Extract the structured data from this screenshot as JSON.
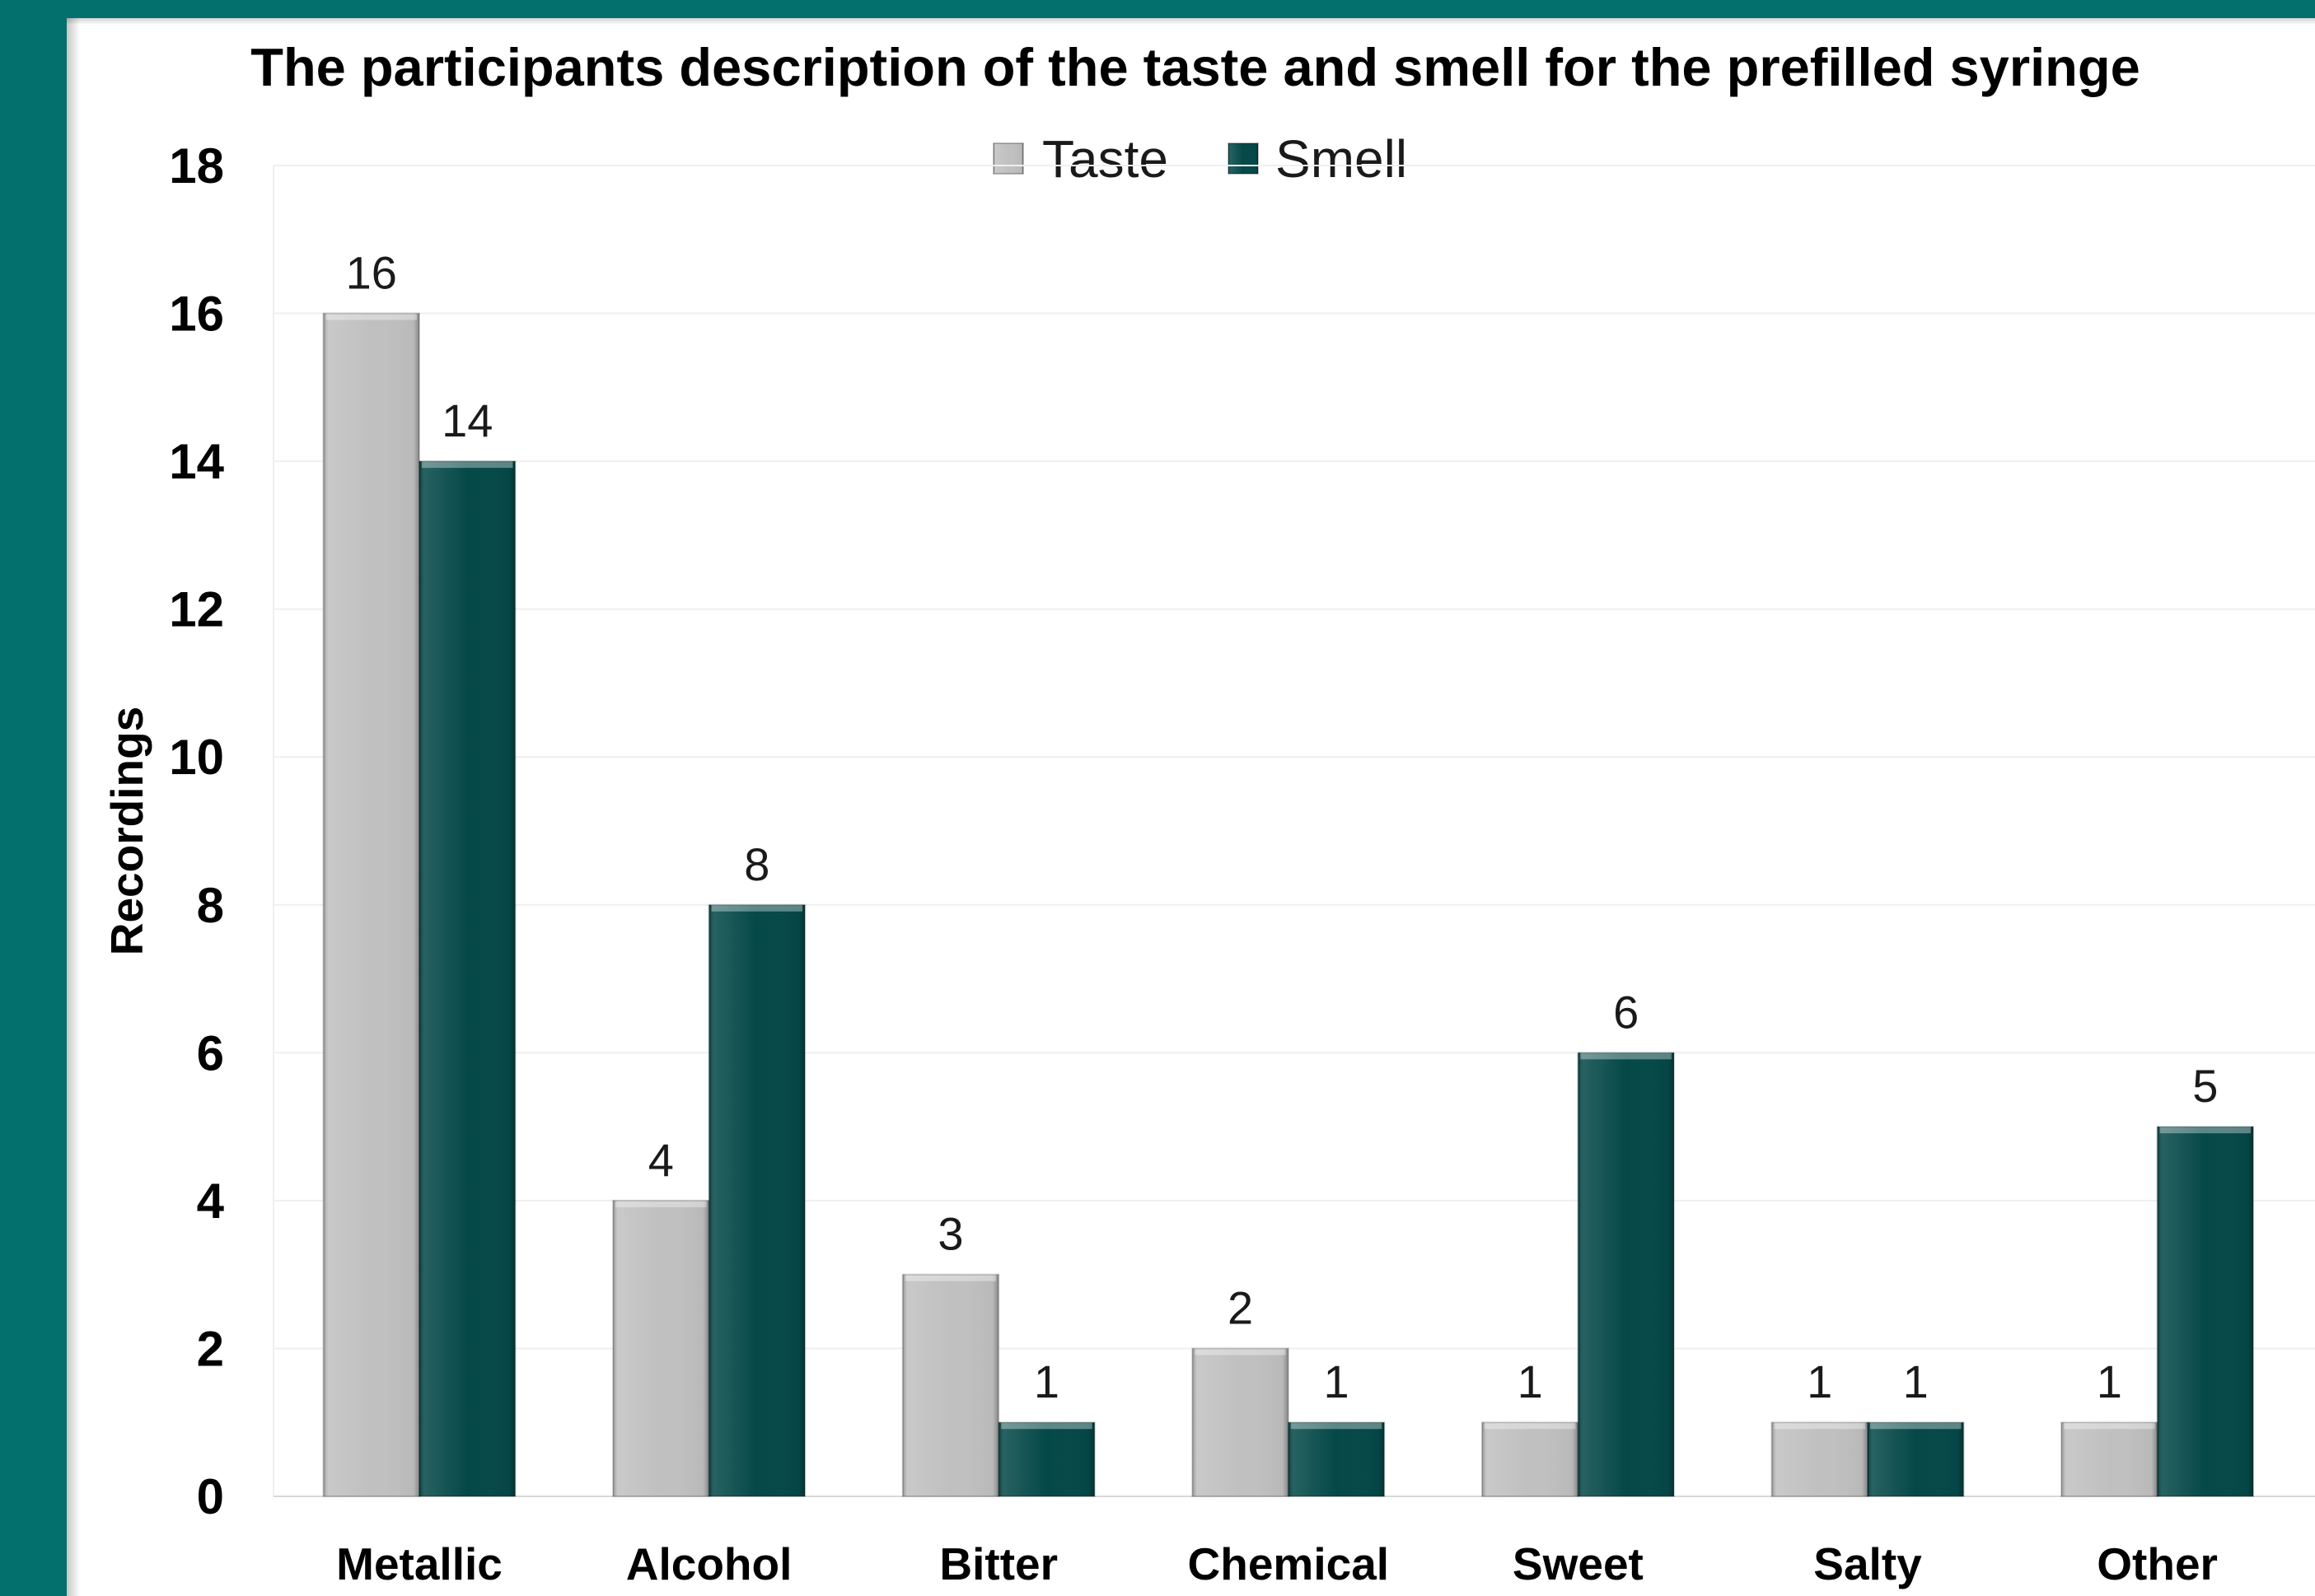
{
  "colors": {
    "frame": "#03706d",
    "background": "#ffffff",
    "gridline": "#efefef",
    "axis": "#d9d9d9"
  },
  "chart_data": {
    "type": "bar",
    "title": "The participants description of the taste and smell for the prefilled syringe",
    "ylabel": "Recordings",
    "categories": [
      "Metallic",
      "Alcohol",
      "Bitter",
      "Chemical",
      "Sweet",
      "Salty",
      "Other"
    ],
    "series": [
      {
        "name": "Taste",
        "values": [
          16,
          4,
          3,
          2,
          1,
          1,
          1
        ],
        "color": "#c0c0c0"
      },
      {
        "name": "Smell",
        "values": [
          14,
          8,
          1,
          1,
          6,
          1,
          5
        ],
        "color": "#054848"
      }
    ],
    "ylim": [
      0,
      18
    ],
    "yticks": [
      0,
      2,
      4,
      6,
      8,
      10,
      12,
      14,
      16,
      18
    ],
    "grid": true,
    "legend": "top",
    "data_labels": true
  }
}
